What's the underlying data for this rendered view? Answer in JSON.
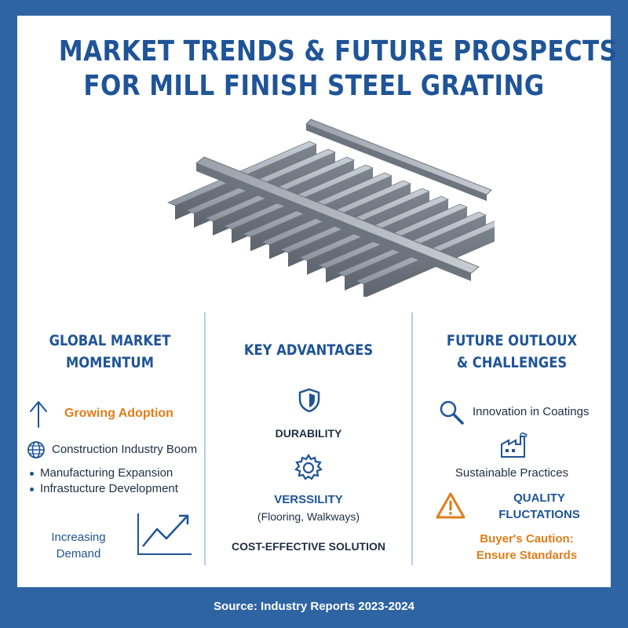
{
  "title": {
    "line1": "MARKET TRENDS & FUTURE PROSPECTS",
    "line2": "FOR MILL FINISH STEEL GRATING"
  },
  "columns": {
    "left": {
      "heading_line1": "GLOBAL MARKET",
      "heading_line2": "MOMENTUM",
      "growing": "Growing Adoption",
      "construction": "Construction Industry Boom",
      "bullets": [
        "Manufacturing Expansion",
        "Infrastucture Development"
      ],
      "demand_line1": "Increasing",
      "demand_line2": "Demand"
    },
    "middle": {
      "heading": "KEY ADVANTAGES",
      "durability": "DURABILITY",
      "versatility": "VERSSILITY",
      "versatility_sub": "(Flooring, Walkways)",
      "cost": "COST-EFFECTIVE SOLUTION"
    },
    "right": {
      "heading_line1": "FUTURE OUTLOUX",
      "heading_line2": "& CHALLENGES",
      "innovation": "Innovation in Coatings",
      "sustainable": "Sustainable Practices",
      "quality_line1": "QUALITY",
      "quality_line2": "FLUCTATIONS",
      "caution_line1": "Buyer's Caution:",
      "caution_line2": "Ensure Standards"
    }
  },
  "footer": "Source: Industry Reports 2023-2024",
  "colors": {
    "brand_blue": "#1f5497",
    "accent_orange": "#e07d1a",
    "background": "#2f64a3"
  },
  "icons": [
    "up-arrow-icon",
    "globe-icon",
    "trend-chart-icon",
    "shield-icon",
    "gear-icon",
    "magnifier-icon",
    "factory-icon",
    "warning-icon"
  ]
}
